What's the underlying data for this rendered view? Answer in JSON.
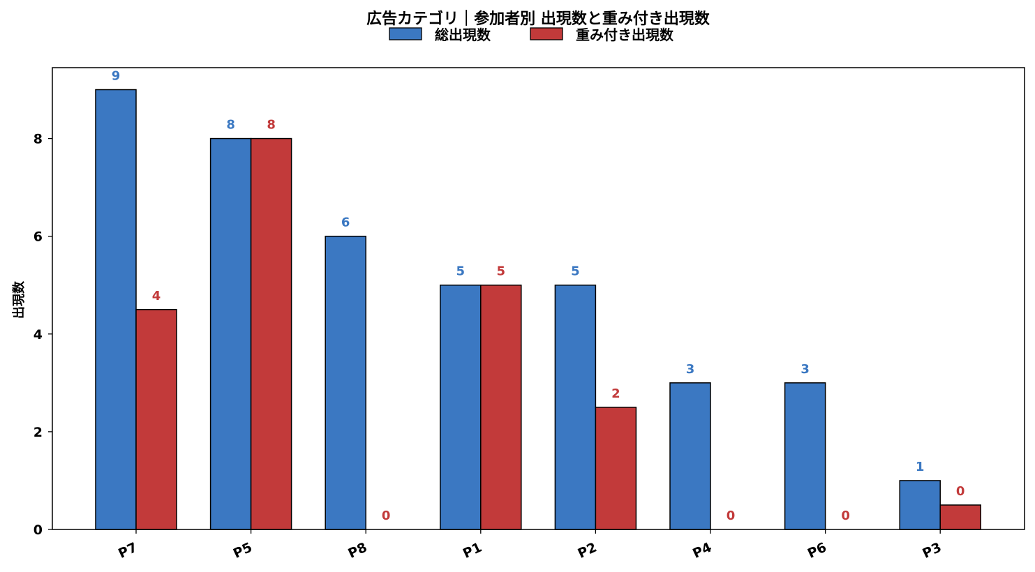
{
  "chart_data": {
    "type": "bar",
    "title": "広告カテゴリ｜参加者別 出現数と重み付き出現数",
    "ylabel": "出現数",
    "xlabel": "",
    "categories": [
      "P7",
      "P5",
      "P8",
      "P1",
      "P2",
      "P4",
      "P6",
      "P3"
    ],
    "series": [
      {
        "name": "総出現数",
        "color": "#3b78c2",
        "values": [
          9,
          8,
          6,
          5,
          5,
          3,
          3,
          1
        ],
        "labels": [
          "9",
          "8",
          "6",
          "5",
          "5",
          "3",
          "3",
          "1"
        ]
      },
      {
        "name": "重み付き出現数",
        "color": "#c23a3a",
        "values": [
          4.5,
          8,
          0,
          5,
          2.5,
          0,
          0,
          0.5
        ],
        "labels": [
          "4",
          "8",
          "0",
          "5",
          "2",
          "0",
          "0",
          "0"
        ]
      }
    ],
    "ylim": [
      0,
      9.45
    ],
    "yticks": [
      0,
      2,
      4,
      6,
      8
    ],
    "ytick_labels": [
      "0",
      "2",
      "4",
      "6",
      "8"
    ],
    "grid": false,
    "legend_position": "top-center"
  }
}
